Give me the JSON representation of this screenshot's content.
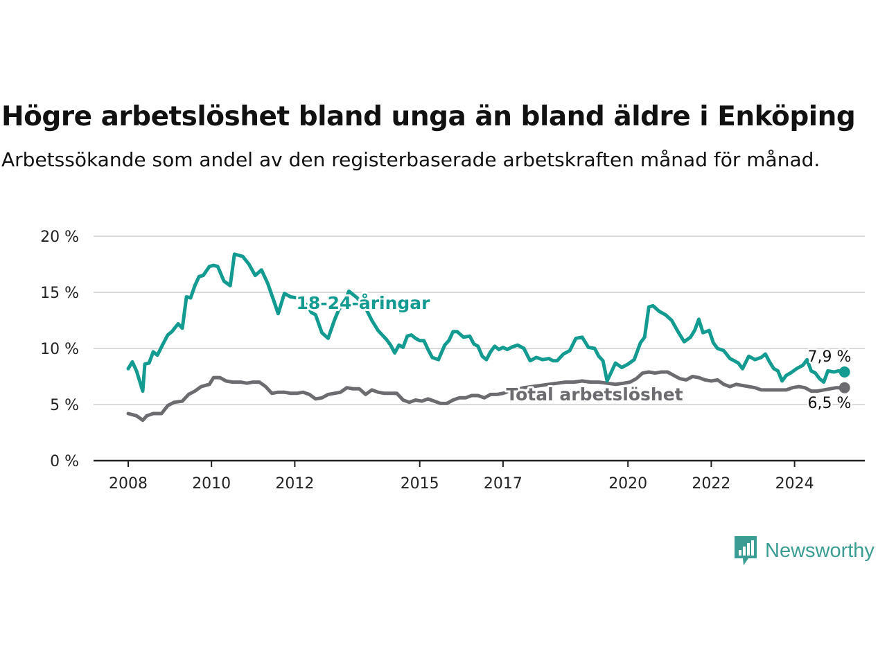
{
  "title": "Högre arbetslöshet bland unga än bland äldre i Enköping",
  "subtitle": "Arbetssökande som andel av den registerbaserade arbetskraften månad för månad.",
  "brand": {
    "name": "Newsworthy",
    "color": "#3a9c92"
  },
  "chart_data": {
    "type": "line",
    "xlabel": "",
    "ylabel": "",
    "ylim": [
      0,
      20
    ],
    "xlim": [
      2008,
      2025.6
    ],
    "grid": true,
    "x_ticks": [
      {
        "value": 2008,
        "label": "2008"
      },
      {
        "value": 2010,
        "label": "2010"
      },
      {
        "value": 2012,
        "label": "2012"
      },
      {
        "value": 2015,
        "label": "2015"
      },
      {
        "value": 2017,
        "label": "2017"
      },
      {
        "value": 2020,
        "label": "2020"
      },
      {
        "value": 2022,
        "label": "2022"
      },
      {
        "value": 2024,
        "label": "2024"
      }
    ],
    "y_ticks": [
      {
        "value": 0,
        "label": "0 %"
      },
      {
        "value": 5,
        "label": "5 %"
      },
      {
        "value": 10,
        "label": "10 %"
      },
      {
        "value": 15,
        "label": "15 %"
      },
      {
        "value": 20,
        "label": "20 %"
      }
    ],
    "series": [
      {
        "name": "18-24-åringar",
        "color": "#139b91",
        "end_label": "7,9 %",
        "x": [
          2008.0,
          2008.1,
          2008.2,
          2008.35,
          2008.4,
          2008.5,
          2008.6,
          2008.7,
          2008.85,
          2008.95,
          2009.05,
          2009.2,
          2009.3,
          2009.4,
          2009.5,
          2009.6,
          2009.7,
          2009.8,
          2009.95,
          2010.05,
          2010.15,
          2010.3,
          2010.45,
          2010.55,
          2010.65,
          2010.75,
          2010.9,
          2011.05,
          2011.2,
          2011.35,
          2011.5,
          2011.6,
          2011.75,
          2011.9,
          2012.05,
          2012.2,
          2012.3,
          2012.4,
          2012.5,
          2012.65,
          2012.8,
          2012.95,
          2013.05,
          2013.2,
          2013.3,
          2013.5,
          2013.7,
          2013.85,
          2014.0,
          2014.1,
          2014.2,
          2014.3,
          2014.4,
          2014.5,
          2014.6,
          2014.7,
          2014.8,
          2014.9,
          2015.0,
          2015.1,
          2015.2,
          2015.3,
          2015.45,
          2015.6,
          2015.7,
          2015.8,
          2015.9,
          2016.05,
          2016.2,
          2016.3,
          2016.4,
          2016.5,
          2016.6,
          2016.7,
          2016.8,
          2016.9,
          2017.0,
          2017.1,
          2017.2,
          2017.35,
          2017.5,
          2017.65,
          2017.8,
          2017.95,
          2018.1,
          2018.2,
          2018.3,
          2018.45,
          2018.6,
          2018.75,
          2018.9,
          2019.05,
          2019.2,
          2019.3,
          2019.4,
          2019.5,
          2019.6,
          2019.7,
          2019.85,
          2020.0,
          2020.15,
          2020.3,
          2020.4,
          2020.5,
          2020.6,
          2020.75,
          2020.9,
          2021.05,
          2021.2,
          2021.35,
          2021.5,
          2021.6,
          2021.7,
          2021.8,
          2021.95,
          2022.05,
          2022.15,
          2022.3,
          2022.45,
          2022.55,
          2022.65,
          2022.75,
          2022.9,
          2023.05,
          2023.2,
          2023.3,
          2023.4,
          2023.5,
          2023.6,
          2023.7,
          2023.8,
          2023.9,
          2024.05,
          2024.2,
          2024.3,
          2024.4,
          2024.5,
          2024.6,
          2024.7,
          2024.8,
          2024.95,
          2025.05,
          2025.2
        ],
        "y": [
          8.2,
          8.8,
          8.0,
          6.2,
          8.6,
          8.7,
          9.7,
          9.4,
          10.5,
          11.2,
          11.5,
          12.2,
          11.8,
          14.6,
          14.5,
          15.6,
          16.4,
          16.5,
          17.3,
          17.4,
          17.3,
          16.0,
          15.6,
          18.4,
          18.3,
          18.2,
          17.5,
          16.5,
          17.0,
          15.8,
          14.2,
          13.1,
          14.9,
          14.6,
          14.5,
          14.2,
          13.8,
          13.2,
          13.0,
          11.4,
          10.9,
          12.5,
          13.4,
          14.2,
          15.1,
          14.5,
          13.6,
          12.5,
          11.6,
          11.2,
          10.8,
          10.3,
          9.6,
          10.3,
          10.1,
          11.1,
          11.2,
          10.9,
          10.7,
          10.7,
          9.9,
          9.2,
          9.0,
          10.3,
          10.7,
          11.5,
          11.5,
          11.0,
          11.1,
          10.4,
          10.2,
          9.3,
          9.0,
          9.7,
          10.2,
          9.9,
          10.1,
          9.9,
          10.1,
          10.3,
          10.0,
          8.9,
          9.2,
          9.0,
          9.1,
          8.9,
          8.9,
          9.5,
          9.8,
          10.9,
          11.0,
          10.1,
          10.0,
          9.3,
          8.9,
          7.1,
          7.9,
          8.7,
          8.3,
          8.6,
          9.0,
          10.5,
          11.0,
          13.7,
          13.8,
          13.3,
          13.0,
          12.5,
          11.5,
          10.6,
          11.0,
          11.6,
          12.6,
          11.4,
          11.6,
          10.5,
          10.0,
          9.8,
          9.1,
          8.9,
          8.7,
          8.2,
          9.3,
          9.0,
          9.2,
          9.5,
          8.8,
          8.2,
          8.0,
          7.1,
          7.6,
          7.8,
          8.2,
          8.5,
          9.0,
          8.0,
          7.8,
          7.3,
          7.0,
          8.0,
          7.9,
          8.0,
          7.9
        ]
      },
      {
        "name": "Total arbetslöshet",
        "color": "#6b6b70",
        "end_label": "6,5 %",
        "x": [
          2008.0,
          2008.2,
          2008.35,
          2008.45,
          2008.6,
          2008.8,
          2008.95,
          2009.1,
          2009.3,
          2009.45,
          2009.6,
          2009.75,
          2009.95,
          2010.05,
          2010.2,
          2010.35,
          2010.5,
          2010.7,
          2010.85,
          2011.0,
          2011.15,
          2011.3,
          2011.45,
          2011.6,
          2011.75,
          2011.9,
          2012.05,
          2012.2,
          2012.35,
          2012.5,
          2012.65,
          2012.8,
          2012.95,
          2013.1,
          2013.25,
          2013.4,
          2013.55,
          2013.7,
          2013.85,
          2014.0,
          2014.15,
          2014.3,
          2014.45,
          2014.6,
          2014.75,
          2014.9,
          2015.05,
          2015.2,
          2015.35,
          2015.5,
          2015.65,
          2015.8,
          2015.95,
          2016.1,
          2016.25,
          2016.4,
          2016.55,
          2016.7,
          2016.85,
          2017.0,
          2017.15,
          2017.3,
          2017.5,
          2017.7,
          2017.9,
          2018.1,
          2018.3,
          2018.5,
          2018.7,
          2018.9,
          2019.1,
          2019.3,
          2019.5,
          2019.7,
          2019.9,
          2020.05,
          2020.2,
          2020.35,
          2020.5,
          2020.65,
          2020.8,
          2020.95,
          2021.1,
          2021.25,
          2021.4,
          2021.55,
          2021.7,
          2021.85,
          2022.0,
          2022.15,
          2022.3,
          2022.45,
          2022.6,
          2022.75,
          2022.9,
          2023.05,
          2023.2,
          2023.35,
          2023.5,
          2023.65,
          2023.8,
          2023.95,
          2024.1,
          2024.25,
          2024.4,
          2024.55,
          2024.7,
          2024.85,
          2025.0,
          2025.2
        ],
        "y": [
          4.2,
          4.0,
          3.6,
          4.0,
          4.2,
          4.2,
          4.9,
          5.2,
          5.3,
          5.9,
          6.2,
          6.6,
          6.8,
          7.4,
          7.4,
          7.1,
          7.0,
          7.0,
          6.9,
          7.0,
          7.0,
          6.6,
          6.0,
          6.1,
          6.1,
          6.0,
          6.0,
          6.1,
          5.9,
          5.5,
          5.6,
          5.9,
          6.0,
          6.1,
          6.5,
          6.4,
          6.4,
          5.9,
          6.3,
          6.1,
          6.0,
          6.0,
          6.0,
          5.4,
          5.2,
          5.4,
          5.3,
          5.5,
          5.3,
          5.1,
          5.1,
          5.4,
          5.6,
          5.6,
          5.8,
          5.8,
          5.6,
          5.9,
          5.9,
          6.0,
          6.2,
          6.3,
          6.5,
          6.6,
          6.7,
          6.8,
          6.9,
          7.0,
          7.0,
          7.1,
          7.0,
          7.0,
          6.9,
          6.8,
          6.9,
          7.0,
          7.3,
          7.8,
          7.9,
          7.8,
          7.9,
          7.9,
          7.6,
          7.3,
          7.2,
          7.5,
          7.4,
          7.2,
          7.1,
          7.2,
          6.8,
          6.6,
          6.8,
          6.7,
          6.6,
          6.5,
          6.3,
          6.3,
          6.3,
          6.3,
          6.3,
          6.5,
          6.6,
          6.5,
          6.2,
          6.2,
          6.3,
          6.4,
          6.5,
          6.5
        ]
      }
    ]
  }
}
